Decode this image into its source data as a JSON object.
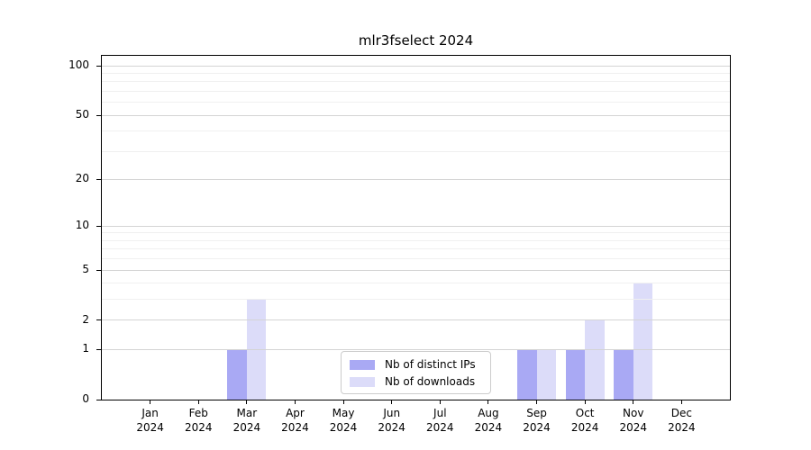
{
  "chart_data": {
    "type": "bar",
    "title": "mlr3fselect 2024",
    "x_categories": [
      "Jan",
      "Feb",
      "Mar",
      "Apr",
      "May",
      "Jun",
      "Jul",
      "Aug",
      "Sep",
      "Oct",
      "Nov",
      "Dec"
    ],
    "x_year": "2024",
    "series": [
      {
        "name": "Nb of distinct IPs",
        "color": "#a9a9f4",
        "values": [
          0,
          0,
          1,
          0,
          0,
          0,
          0,
          0,
          1,
          1,
          1,
          0
        ]
      },
      {
        "name": "Nb of downloads",
        "color": "#dcdcf9",
        "values": [
          0,
          0,
          3,
          0,
          0,
          0,
          0,
          0,
          1,
          2,
          4,
          0
        ]
      }
    ],
    "y_scale": "log10(1+x)",
    "y_ticks_major": [
      0,
      1,
      2,
      5,
      10,
      20,
      50,
      100
    ],
    "y_ticks_minor": [
      3,
      4,
      6,
      7,
      8,
      9,
      30,
      40,
      60,
      70,
      80,
      90
    ],
    "y_max": 115,
    "grid": {
      "major_color": "#d4d4d4",
      "minor_color": "#f0f0f0"
    },
    "legend": {
      "position": "lower center",
      "labels": [
        "Nb of distinct IPs",
        "Nb of downloads"
      ]
    },
    "colors": {
      "spine": "#000000",
      "background": "#ffffff"
    }
  }
}
